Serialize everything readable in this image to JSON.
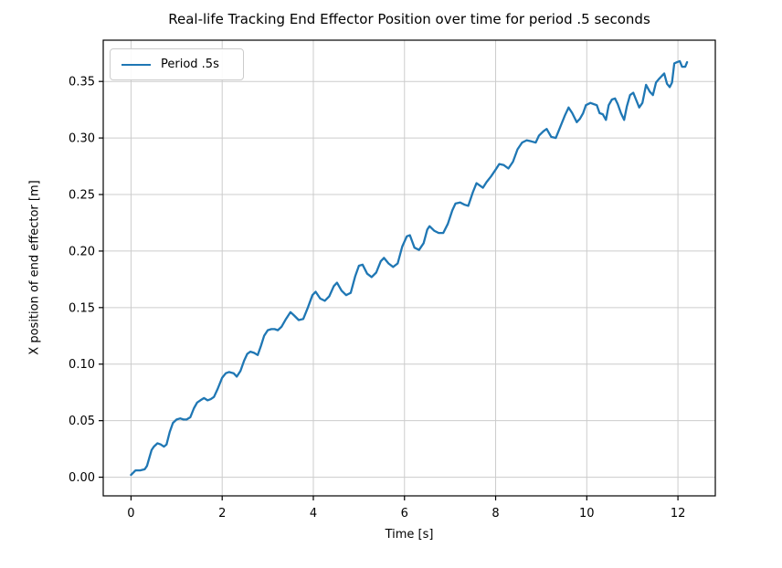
{
  "chart_data": {
    "type": "line",
    "title": "Real-life Tracking End Effector Position over time for period .5 seconds",
    "xlabel": "Time [s]",
    "ylabel": "X position of end effector [m]",
    "xlim": [
      -0.61,
      12.82
    ],
    "ylim": [
      -0.0165,
      0.3865
    ],
    "xticks": [
      0,
      2,
      4,
      6,
      8,
      10,
      12
    ],
    "xtick_labels": [
      "0",
      "2",
      "4",
      "6",
      "8",
      "10",
      "12"
    ],
    "yticks": [
      0.0,
      0.05,
      0.1,
      0.15,
      0.2,
      0.25,
      0.3,
      0.35
    ],
    "ytick_labels": [
      "0.00",
      "0.05",
      "0.10",
      "0.15",
      "0.20",
      "0.25",
      "0.30",
      "0.35"
    ],
    "grid": true,
    "legend": {
      "position": "upper left",
      "entries": [
        {
          "label": "Period .5s",
          "color": "#1f77b4"
        }
      ]
    },
    "colors": {
      "line": "#1f77b4",
      "grid": "#cccccc",
      "spine": "#000000",
      "text": "#000000",
      "background": "#ffffff"
    },
    "series": [
      {
        "name": "Period .5s",
        "color": "#1f77b4",
        "points": [
          [
            0.0,
            0.002
          ],
          [
            0.05,
            0.004
          ],
          [
            0.1,
            0.006
          ],
          [
            0.2,
            0.006
          ],
          [
            0.3,
            0.007
          ],
          [
            0.35,
            0.01
          ],
          [
            0.4,
            0.017
          ],
          [
            0.45,
            0.024
          ],
          [
            0.5,
            0.027
          ],
          [
            0.58,
            0.03
          ],
          [
            0.65,
            0.029
          ],
          [
            0.72,
            0.027
          ],
          [
            0.78,
            0.029
          ],
          [
            0.85,
            0.04
          ],
          [
            0.92,
            0.048
          ],
          [
            1.0,
            0.051
          ],
          [
            1.08,
            0.052
          ],
          [
            1.15,
            0.051
          ],
          [
            1.22,
            0.051
          ],
          [
            1.3,
            0.053
          ],
          [
            1.38,
            0.061
          ],
          [
            1.45,
            0.066
          ],
          [
            1.52,
            0.068
          ],
          [
            1.6,
            0.07
          ],
          [
            1.68,
            0.068
          ],
          [
            1.75,
            0.069
          ],
          [
            1.82,
            0.071
          ],
          [
            1.9,
            0.078
          ],
          [
            2.0,
            0.088
          ],
          [
            2.08,
            0.092
          ],
          [
            2.15,
            0.093
          ],
          [
            2.25,
            0.092
          ],
          [
            2.32,
            0.089
          ],
          [
            2.4,
            0.094
          ],
          [
            2.48,
            0.103
          ],
          [
            2.55,
            0.109
          ],
          [
            2.62,
            0.111
          ],
          [
            2.7,
            0.11
          ],
          [
            2.78,
            0.108
          ],
          [
            2.85,
            0.116
          ],
          [
            2.92,
            0.125
          ],
          [
            3.0,
            0.13
          ],
          [
            3.08,
            0.131
          ],
          [
            3.15,
            0.131
          ],
          [
            3.22,
            0.13
          ],
          [
            3.3,
            0.133
          ],
          [
            3.4,
            0.14
          ],
          [
            3.5,
            0.146
          ],
          [
            3.58,
            0.143
          ],
          [
            3.68,
            0.139
          ],
          [
            3.78,
            0.14
          ],
          [
            3.88,
            0.15
          ],
          [
            3.98,
            0.161
          ],
          [
            4.05,
            0.164
          ],
          [
            4.15,
            0.158
          ],
          [
            4.25,
            0.156
          ],
          [
            4.35,
            0.16
          ],
          [
            4.45,
            0.169
          ],
          [
            4.52,
            0.172
          ],
          [
            4.62,
            0.165
          ],
          [
            4.72,
            0.161
          ],
          [
            4.82,
            0.163
          ],
          [
            4.92,
            0.178
          ],
          [
            5.0,
            0.187
          ],
          [
            5.08,
            0.188
          ],
          [
            5.18,
            0.18
          ],
          [
            5.28,
            0.177
          ],
          [
            5.38,
            0.181
          ],
          [
            5.48,
            0.191
          ],
          [
            5.55,
            0.194
          ],
          [
            5.65,
            0.189
          ],
          [
            5.75,
            0.186
          ],
          [
            5.85,
            0.189
          ],
          [
            5.95,
            0.204
          ],
          [
            6.05,
            0.213
          ],
          [
            6.12,
            0.214
          ],
          [
            6.22,
            0.203
          ],
          [
            6.32,
            0.201
          ],
          [
            6.42,
            0.207
          ],
          [
            6.5,
            0.219
          ],
          [
            6.55,
            0.222
          ],
          [
            6.65,
            0.218
          ],
          [
            6.75,
            0.216
          ],
          [
            6.85,
            0.216
          ],
          [
            6.95,
            0.224
          ],
          [
            7.05,
            0.236
          ],
          [
            7.12,
            0.242
          ],
          [
            7.22,
            0.243
          ],
          [
            7.32,
            0.241
          ],
          [
            7.4,
            0.24
          ],
          [
            7.5,
            0.252
          ],
          [
            7.58,
            0.26
          ],
          [
            7.65,
            0.258
          ],
          [
            7.72,
            0.256
          ],
          [
            7.8,
            0.261
          ],
          [
            7.9,
            0.266
          ],
          [
            8.0,
            0.272
          ],
          [
            8.08,
            0.277
          ],
          [
            8.18,
            0.276
          ],
          [
            8.28,
            0.273
          ],
          [
            8.38,
            0.279
          ],
          [
            8.48,
            0.29
          ],
          [
            8.58,
            0.296
          ],
          [
            8.68,
            0.298
          ],
          [
            8.78,
            0.297
          ],
          [
            8.88,
            0.296
          ],
          [
            8.95,
            0.302
          ],
          [
            9.05,
            0.306
          ],
          [
            9.12,
            0.308
          ],
          [
            9.22,
            0.301
          ],
          [
            9.32,
            0.3
          ],
          [
            9.42,
            0.31
          ],
          [
            9.52,
            0.32
          ],
          [
            9.6,
            0.327
          ],
          [
            9.68,
            0.322
          ],
          [
            9.78,
            0.314
          ],
          [
            9.85,
            0.317
          ],
          [
            9.92,
            0.322
          ],
          [
            9.98,
            0.329
          ],
          [
            10.08,
            0.331
          ],
          [
            10.15,
            0.33
          ],
          [
            10.22,
            0.329
          ],
          [
            10.28,
            0.322
          ],
          [
            10.35,
            0.321
          ],
          [
            10.42,
            0.316
          ],
          [
            10.48,
            0.329
          ],
          [
            10.55,
            0.334
          ],
          [
            10.62,
            0.335
          ],
          [
            10.68,
            0.33
          ],
          [
            10.75,
            0.322
          ],
          [
            10.82,
            0.316
          ],
          [
            10.88,
            0.328
          ],
          [
            10.95,
            0.338
          ],
          [
            11.02,
            0.34
          ],
          [
            11.08,
            0.334
          ],
          [
            11.15,
            0.327
          ],
          [
            11.22,
            0.331
          ],
          [
            11.3,
            0.347
          ],
          [
            11.38,
            0.341
          ],
          [
            11.45,
            0.338
          ],
          [
            11.52,
            0.349
          ],
          [
            11.58,
            0.352
          ],
          [
            11.65,
            0.355
          ],
          [
            11.7,
            0.357
          ],
          [
            11.76,
            0.348
          ],
          [
            11.82,
            0.345
          ],
          [
            11.87,
            0.349
          ],
          [
            11.92,
            0.366
          ],
          [
            11.98,
            0.367
          ],
          [
            12.04,
            0.368
          ],
          [
            12.09,
            0.363
          ],
          [
            12.16,
            0.363
          ],
          [
            12.2,
            0.367
          ]
        ]
      }
    ]
  }
}
